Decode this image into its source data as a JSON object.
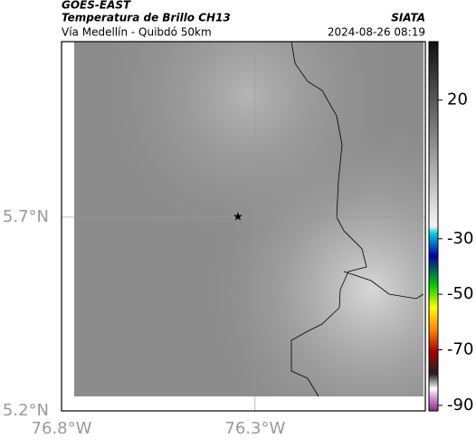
{
  "header": {
    "title": "GOES-EAST",
    "subtitle": "Temperatura de Brillo CH13",
    "source": "SIATA",
    "location": "Vía Medellín - Quibdó 50km",
    "datetime": "2024-08-26 08:19"
  },
  "map": {
    "xlim": [
      -76.8,
      -75.86
    ],
    "ylim": [
      5.2,
      6.153
    ],
    "xticks": [
      {
        "value": -76.8,
        "label": "76.8°W"
      },
      {
        "value": -76.3,
        "label": "76.3°W"
      }
    ],
    "yticks": [
      {
        "value": 5.2,
        "label": "5.2°N"
      },
      {
        "value": 5.7,
        "label": "5.7°N"
      }
    ],
    "grid": true,
    "marker": {
      "lon": -76.344,
      "lat": 5.7
    }
  },
  "colorbar": {
    "clim": [
      -92,
      41
    ],
    "ticks": [
      20,
      -30,
      -50,
      -70,
      -90
    ]
  }
}
